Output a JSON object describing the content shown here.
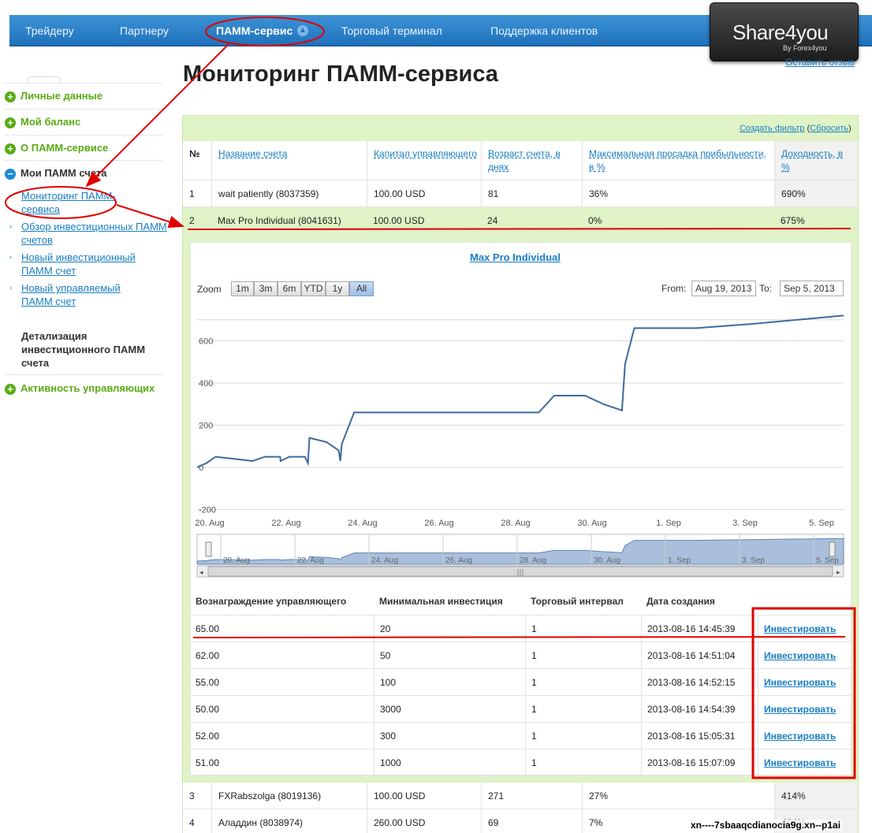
{
  "nav": {
    "items": [
      {
        "label": "Трейдеру"
      },
      {
        "label": "Партнеру"
      },
      {
        "label": "ПАММ-сервис"
      },
      {
        "label": "Торговый терминал"
      },
      {
        "label": "Поддержка клиентов"
      }
    ],
    "logo_brand": "Share4you",
    "logo_sub": "By Forex4you",
    "feedback_link": "Оставить отзыв"
  },
  "page_title": "Мониторинг ПАММ-сервиса",
  "sidebar": {
    "items": [
      {
        "label": "Личные данные"
      },
      {
        "label": "Мой баланс"
      },
      {
        "label": "О ПАММ-сервисе"
      },
      {
        "label": "Мои ПАММ счета"
      }
    ],
    "sub_items": [
      {
        "label": "Мониторинг ПАММ-сервиса"
      },
      {
        "label": "Обзор инвестиционных ПАММ счетов"
      },
      {
        "label": "Новый инвестиционный ПАММ счет"
      },
      {
        "label": "Новый управляемый ПАММ счет"
      }
    ],
    "heading": "Детализация инвестиционного ПАММ счета",
    "last_item": "Активность управляющих"
  },
  "filter": {
    "create": "Создать фильтр",
    "reset": "Сбросить"
  },
  "table": {
    "headers": [
      "№",
      "Название счета",
      "Капитал управляющего",
      "Возраст счета, в днях",
      "Максимальная просадка прибыльности, в %",
      "Доходность, в %"
    ],
    "rows": [
      {
        "n": "1",
        "name": "wait patiently (8037359)",
        "capital": "100.00 USD",
        "age": "81",
        "drawdown": "36%",
        "yield": "690%"
      },
      {
        "n": "2",
        "name": "Max Pro Individual (8041631)",
        "capital": "100.00 USD",
        "age": "24",
        "drawdown": "0%",
        "yield": "675%"
      },
      {
        "n": "3",
        "name": "FXRabszolga (8019136)",
        "capital": "100.00 USD",
        "age": "271",
        "drawdown": "27%",
        "yield": "414%"
      },
      {
        "n": "4",
        "name": "Аладдин (8038974)",
        "capital": "260.00 USD",
        "age": "69",
        "drawdown": "7%",
        "yield": "404%"
      }
    ]
  },
  "detail": {
    "chart_title": "Max Pro Individual",
    "zoom_label": "Zoom",
    "zoom_buttons": [
      "1m",
      "3m",
      "6m",
      "YTD",
      "1y",
      "All"
    ],
    "zoom_active": "All",
    "from_label": "From:",
    "from_value": "Aug 19, 2013",
    "to_label": "To:",
    "to_value": "Sep 5, 2013",
    "offers_headers": [
      "Вознаграждение управляющего",
      "Минимальная инвестиция",
      "Торговый интервал",
      "Дата создания",
      ""
    ],
    "offers": [
      {
        "fee": "65.00",
        "min": "20",
        "interval": "1",
        "date": "2013-08-16 14:45:39",
        "action": "Инвестировать"
      },
      {
        "fee": "62.00",
        "min": "50",
        "interval": "1",
        "date": "2013-08-16 14:51:04",
        "action": "Инвестировать"
      },
      {
        "fee": "55.00",
        "min": "100",
        "interval": "1",
        "date": "2013-08-16 14:52:15",
        "action": "Инвестировать"
      },
      {
        "fee": "50.00",
        "min": "3000",
        "interval": "1",
        "date": "2013-08-16 14:54:39",
        "action": "Инвестировать"
      },
      {
        "fee": "52.00",
        "min": "300",
        "interval": "1",
        "date": "2013-08-16 15:05:31",
        "action": "Инвестировать"
      },
      {
        "fee": "51.00",
        "min": "1000",
        "interval": "1",
        "date": "2013-08-16 15:07:09",
        "action": "Инвестировать"
      }
    ]
  },
  "chart_data": {
    "type": "line",
    "title": "Max Pro Individual",
    "y_ticks": [
      "600",
      "400",
      "200",
      "0",
      "-200"
    ],
    "x_ticks": [
      "20. Aug",
      "22. Aug",
      "24. Aug",
      "26. Aug",
      "28. Aug",
      "30. Aug",
      "1. Sep",
      "3. Sep",
      "5. Sep"
    ],
    "navigator_ticks": [
      "20. Aug",
      "22. Aug",
      "24. Aug",
      "26. Aug",
      "28. Aug",
      "30. Aug",
      "1. Sep",
      "3. Sep",
      "5. Sep"
    ],
    "ylim": [
      -200,
      700
    ],
    "series": [
      {
        "points": [
          [
            "2013-08-19 00:00",
            0
          ],
          [
            "2013-08-19 06:00",
            20
          ],
          [
            "2013-08-19 12:00",
            50
          ],
          [
            "2013-08-20 00:00",
            40
          ],
          [
            "2013-08-20 12:00",
            30
          ],
          [
            "2013-08-20 20:00",
            50
          ],
          [
            "2013-08-21 06:00",
            50
          ],
          [
            "2013-08-21 06:10",
            30
          ],
          [
            "2013-08-21 12:00",
            50
          ],
          [
            "2013-08-21 22:00",
            50
          ],
          [
            "2013-08-22 00:00",
            20
          ],
          [
            "2013-08-22 01:00",
            140
          ],
          [
            "2013-08-22 12:00",
            120
          ],
          [
            "2013-08-22 20:00",
            80
          ],
          [
            "2013-08-22 21:00",
            30
          ],
          [
            "2013-08-22 22:00",
            110
          ],
          [
            "2013-08-23 06:00",
            260
          ],
          [
            "2013-08-28 06:00",
            260
          ],
          [
            "2013-08-28 16:00",
            340
          ],
          [
            "2013-08-29 12:00",
            340
          ],
          [
            "2013-08-30 00:00",
            300
          ],
          [
            "2013-08-30 12:00",
            270
          ],
          [
            "2013-08-30 14:00",
            490
          ],
          [
            "2013-08-30 20:00",
            660
          ],
          [
            "2013-09-01 12:00",
            660
          ],
          [
            "2013-09-03 00:00",
            680
          ],
          [
            "2013-09-05 12:00",
            720
          ]
        ]
      }
    ],
    "grid": true,
    "navigator": true
  },
  "watermark": "xn----7sbaaqcdianocia9g.xn--p1ai",
  "colors": {
    "nav_blue": "#2a82c9",
    "green_accent": "#5aab14",
    "link_blue": "#1a7ec2",
    "panel_green": "#dff3c7",
    "annotation_red": "#e00000",
    "line": "#3c6a9d"
  }
}
